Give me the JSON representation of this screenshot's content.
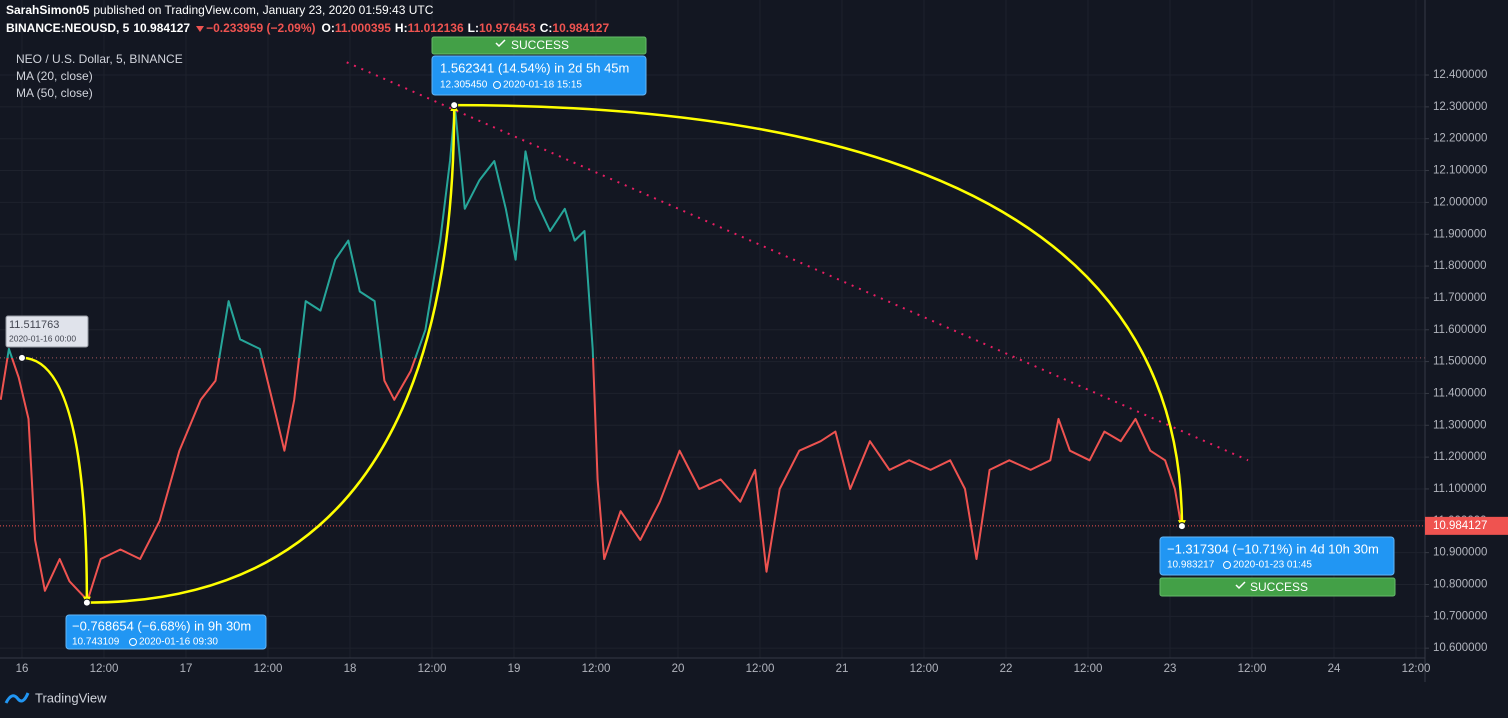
{
  "chart_data": {
    "type": "line",
    "header": {
      "author": "SarahSimon05",
      "published": "published on TradingView.com, January 23, 2020 01:59:43 UTC",
      "symbol": "BINANCE:NEOUSD, 5",
      "price": 10.984127,
      "change": "−0.233959 (−2.09%)",
      "ohlc": [
        {
          "label": "O:",
          "value": 11.000395
        },
        {
          "label": "H:",
          "value": 11.012136
        },
        {
          "label": "L:",
          "value": 10.976453
        },
        {
          "label": "C:",
          "value": 10.984127
        }
      ]
    },
    "ma_labels": [
      "MA (20, close)",
      "MA (50, close)"
    ],
    "x": [
      15.87,
      15.92,
      15.98,
      16.04,
      16.08,
      16.14,
      16.23,
      16.29,
      16.4,
      16.48,
      16.6,
      16.72,
      16.84,
      16.96,
      17.09,
      17.18,
      17.26,
      17.33,
      17.45,
      17.54,
      17.6,
      17.66,
      17.73,
      17.82,
      17.91,
      17.99,
      18.06,
      18.15,
      18.21,
      18.27,
      18.37,
      18.46,
      18.55,
      18.61,
      18.64,
      18.7,
      18.79,
      18.88,
      18.95,
      19.01,
      19.07,
      19.13,
      19.22,
      19.31,
      19.37,
      19.43,
      19.48,
      19.51,
      19.55,
      19.65,
      19.77,
      19.89,
      20.01,
      20.13,
      20.26,
      20.38,
      20.47,
      20.54,
      20.62,
      20.74,
      20.87,
      20.96,
      21.05,
      21.17,
      21.29,
      21.41,
      21.54,
      21.66,
      21.75,
      21.82,
      21.9,
      22.02,
      22.15,
      22.27,
      22.32,
      22.39,
      22.51,
      22.6,
      22.7,
      22.79,
      22.88,
      22.97,
      23.03,
      23.07
    ],
    "series": [
      {
        "name": "NEO / U.S. Dollar, 5, BINANCE",
        "up_color": "#26a69a",
        "down_color": "#ef5350",
        "values": [
          11.38,
          11.54,
          11.45,
          11.32,
          10.94,
          10.78,
          10.88,
          10.81,
          10.75,
          10.88,
          10.91,
          10.88,
          11.0,
          11.22,
          11.38,
          11.44,
          11.69,
          11.57,
          11.54,
          11.35,
          11.22,
          11.38,
          11.69,
          11.66,
          11.82,
          11.88,
          11.72,
          11.69,
          11.44,
          11.38,
          11.47,
          11.6,
          11.88,
          12.13,
          12.3,
          11.98,
          12.07,
          12.13,
          11.98,
          11.82,
          12.16,
          12.01,
          11.91,
          11.98,
          11.88,
          11.91,
          11.54,
          11.13,
          10.88,
          11.03,
          10.94,
          11.06,
          11.22,
          11.1,
          11.13,
          11.06,
          11.16,
          10.84,
          11.1,
          11.22,
          11.25,
          11.28,
          11.1,
          11.25,
          11.16,
          11.19,
          11.16,
          11.19,
          11.1,
          10.88,
          11.16,
          11.19,
          11.16,
          11.19,
          11.32,
          11.22,
          11.19,
          11.28,
          11.25,
          11.32,
          11.22,
          11.19,
          11.1,
          10.98
        ]
      }
    ],
    "baseline": {
      "x": 16,
      "value": 11.511763,
      "date": "2020-01-16 00:00"
    },
    "annotations": [
      {
        "x": 16.395833,
        "y": 10.743109,
        "text": "−0.768654 (−6.68%) in 9h 30m",
        "date": "2020-01-16  09:30"
      },
      {
        "x": 18.635417,
        "y": 12.30545,
        "y_label": "12.305450",
        "text": "1.562341 (14.54%) in 2d 5h 45m",
        "date": "2020-01-18  15:15",
        "status": "SUCCESS"
      },
      {
        "x": 23.072917,
        "y": 10.983217,
        "text": "−1.317304 (−10.71%) in 4d 10h 30m",
        "date": "2020-01-23  01:45",
        "status": "SUCCESS"
      }
    ],
    "trendline": {
      "x": [
        17.98,
        23.476
      ],
      "y": [
        12.44,
        11.19
      ],
      "color": "#e91e63"
    },
    "last_price": 10.984127,
    "xlim": [
      15.866,
      24.555
    ],
    "xticks": [
      16,
      {
        "value": 16.5,
        "label": "12:00"
      },
      17,
      {
        "value": 17.5,
        "label": "12:00"
      },
      18,
      {
        "value": 18.5,
        "label": "12:00"
      },
      19,
      {
        "value": 19.5,
        "label": "12:00"
      },
      20,
      {
        "value": 20.5,
        "label": "12:00"
      },
      21,
      {
        "value": 21.5,
        "label": "12:00"
      },
      22,
      {
        "value": 22.5,
        "label": "12:00"
      },
      23,
      {
        "value": 23.5,
        "label": "12:00"
      },
      24,
      {
        "value": 24.5,
        "label": "12:00"
      }
    ],
    "ylim": [
      10.5,
      12.51
    ],
    "yticks": [
      {
        "value": 10.6,
        "label": "10.600000"
      },
      {
        "value": 10.7,
        "label": "10.700000"
      },
      {
        "value": 10.8,
        "label": "10.800000"
      },
      {
        "value": 10.9,
        "label": "10.900000"
      },
      {
        "value": 11.0,
        "label": "11.000000"
      },
      {
        "value": 11.1,
        "label": "11.100000"
      },
      {
        "value": 11.2,
        "label": "11.200000"
      },
      {
        "value": 11.3,
        "label": "11.300000"
      },
      {
        "value": 11.4,
        "label": "11.400000"
      },
      {
        "value": 11.5,
        "label": "11.500000"
      },
      {
        "value": 11.6,
        "label": "11.600000"
      },
      {
        "value": 11.7,
        "label": "11.700000"
      },
      {
        "value": 11.8,
        "label": "11.800000"
      },
      {
        "value": 11.9,
        "label": "11.900000"
      },
      {
        "value": 12.0,
        "label": "12.000000"
      },
      {
        "value": 12.1,
        "label": "12.100000"
      },
      {
        "value": 12.2,
        "label": "12.200000"
      },
      {
        "value": 12.3,
        "label": "12.300000"
      },
      {
        "value": 12.4,
        "label": "12.400000"
      }
    ],
    "grid": true,
    "footer": "TradingView"
  }
}
